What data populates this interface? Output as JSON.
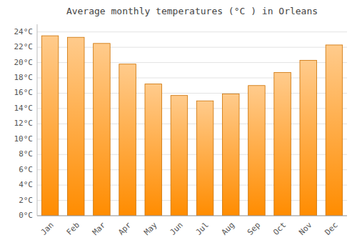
{
  "chart_data": {
    "type": "bar",
    "title": "Average monthly temperatures (°C ) in Orleans",
    "categories": [
      "Jan",
      "Feb",
      "Mar",
      "Apr",
      "May",
      "Jun",
      "Jul",
      "Aug",
      "Sep",
      "Oct",
      "Nov",
      "Dec"
    ],
    "values": [
      23.5,
      23.3,
      22.5,
      19.8,
      17.2,
      15.7,
      15.0,
      15.9,
      17.0,
      18.7,
      20.3,
      22.3
    ],
    "color": "#FF8C00",
    "ylim": [
      0,
      25
    ],
    "yticks": [
      {
        "value": 0,
        "label": "0°C"
      },
      {
        "value": 2,
        "label": "2°C"
      },
      {
        "value": 4,
        "label": "4°C"
      },
      {
        "value": 6,
        "label": "6°C"
      },
      {
        "value": 8,
        "label": "8°C"
      },
      {
        "value": 10,
        "label": "10°C"
      },
      {
        "value": 12,
        "label": "12°C"
      },
      {
        "value": 14,
        "label": "14°C"
      },
      {
        "value": 16,
        "label": "16°C"
      },
      {
        "value": 18,
        "label": "18°C"
      },
      {
        "value": 20,
        "label": "20°C"
      },
      {
        "value": 22,
        "label": "22°C"
      },
      {
        "value": 24,
        "label": "24°C"
      }
    ],
    "grid": true
  }
}
